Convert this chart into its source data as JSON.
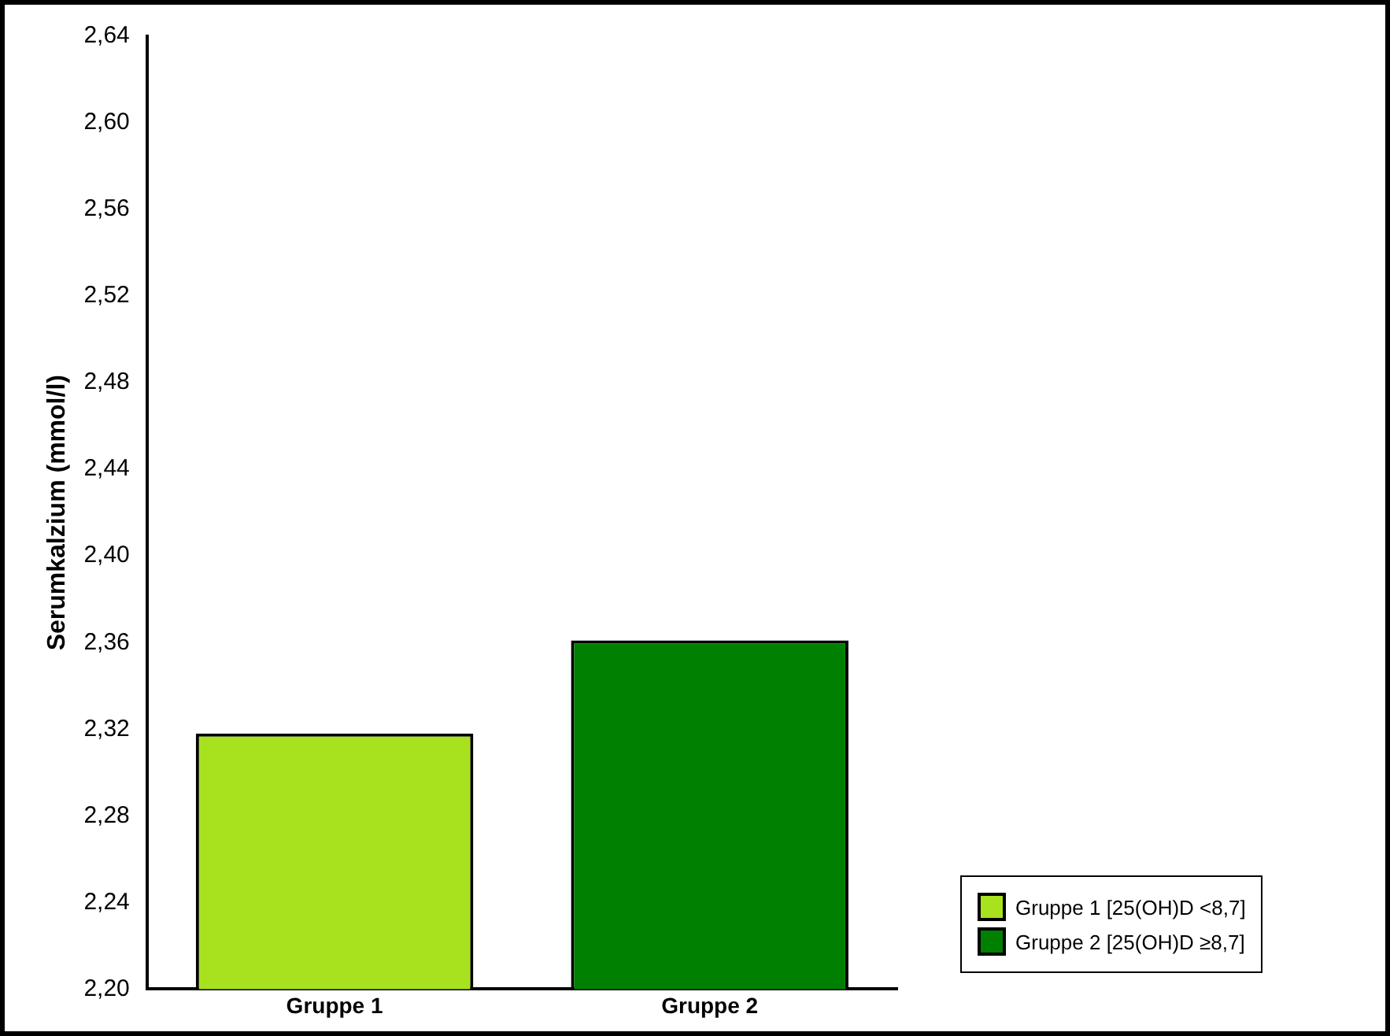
{
  "chart_data": {
    "type": "bar",
    "ylabel": "Serumkalzium (mmol/l)",
    "categories": [
      "Gruppe 1",
      "Gruppe 2"
    ],
    "series": [
      {
        "name": "Gruppe 1 [25(OH)D <8,7]",
        "color": "#a8e21e",
        "values": [
          2.318,
          null
        ]
      },
      {
        "name": "Gruppe 2 [25(OH)D ≥8,7]",
        "color": "#008000",
        "values": [
          null,
          2.361
        ]
      }
    ],
    "ylim": [
      2.2,
      2.64
    ],
    "yticks": [
      {
        "value": 2.2,
        "label": "2,20"
      },
      {
        "value": 2.24,
        "label": "2,24"
      },
      {
        "value": 2.28,
        "label": "2,28"
      },
      {
        "value": 2.32,
        "label": "2,32"
      },
      {
        "value": 2.36,
        "label": "2,36"
      },
      {
        "value": 2.4,
        "label": "2,40"
      },
      {
        "value": 2.44,
        "label": "2,44"
      },
      {
        "value": 2.48,
        "label": "2,48"
      },
      {
        "value": 2.52,
        "label": "2,52"
      },
      {
        "value": 2.56,
        "label": "2,56"
      },
      {
        "value": 2.6,
        "label": "2,60"
      },
      {
        "value": 2.64,
        "label": "2,64"
      }
    ],
    "grid": false,
    "legend": "bottom right"
  }
}
